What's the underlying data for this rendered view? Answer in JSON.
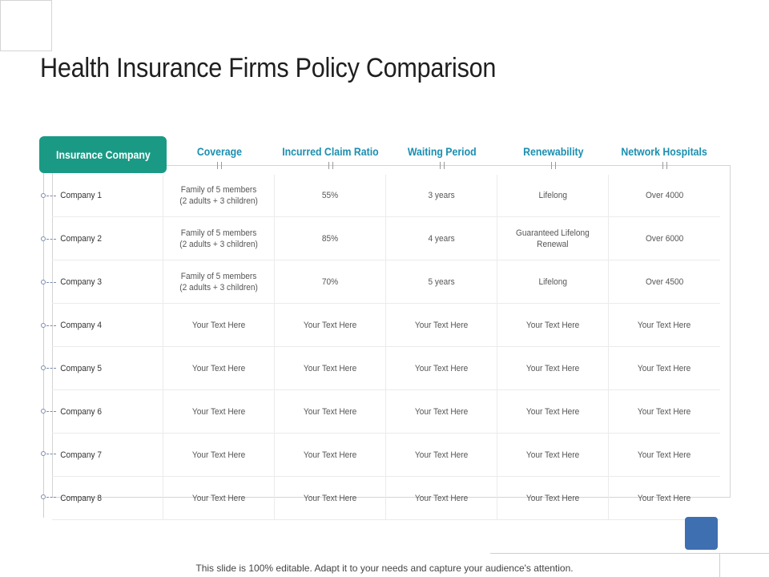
{
  "slide": {
    "title": "Health Insurance Firms Policy Comparison",
    "footer": "This slide is 100% editable. Adapt it to your needs and capture your audience's attention.",
    "accent_color": "#1a9a85",
    "header_text_color": "#1a8fb0",
    "square_color": "#3e6fb0"
  },
  "table": {
    "headers": [
      "Insurance Company",
      "Coverage",
      "Incurred Claim Ratio",
      "Waiting Period",
      "Renewability",
      "Network Hospitals"
    ],
    "rows": [
      [
        "Company 1",
        "Family  of 5 members\n(2 adults + 3 children)",
        "55%",
        "3 years",
        "Lifelong",
        "Over 4000"
      ],
      [
        "Company 2",
        "Family  of 5 members\n(2 adults + 3 children)",
        "85%",
        "4 years",
        "Guaranteed Lifelong\nRenewal",
        "Over 6000"
      ],
      [
        "Company 3",
        "Family  of 5 members\n(2 adults + 3 children)",
        "70%",
        "5 years",
        "Lifelong",
        "Over 4500"
      ],
      [
        "Company 4",
        "Your Text Here",
        "Your Text Here",
        "Your Text Here",
        "Your Text Here",
        "Your Text Here"
      ],
      [
        "Company 5",
        "Your Text Here",
        "Your Text Here",
        "Your Text Here",
        "Your Text Here",
        "Your Text Here"
      ],
      [
        "Company 6",
        "Your Text Here",
        "Your Text Here",
        "Your Text Here",
        "Your Text Here",
        "Your Text Here"
      ],
      [
        "Company 7",
        "Your Text Here",
        "Your Text Here",
        "Your Text Here",
        "Your Text Here",
        "Your Text Here"
      ],
      [
        "Company 8",
        "Your Text Here",
        "Your Text Here",
        "Your Text Here",
        "Your Text Here",
        "Your Text Here"
      ]
    ]
  }
}
